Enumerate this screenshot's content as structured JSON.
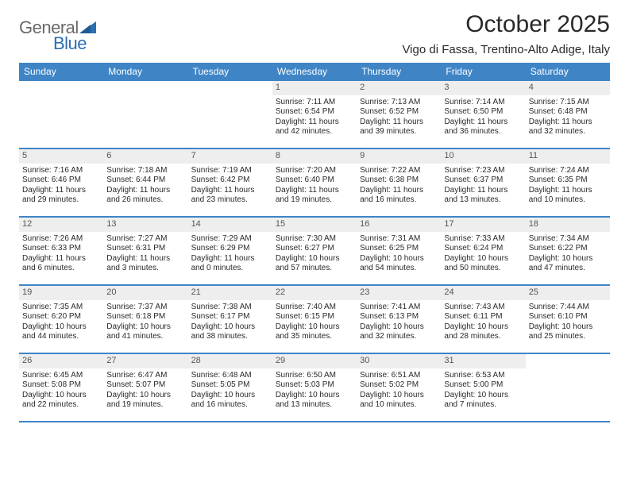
{
  "logo": {
    "part1": "General",
    "part2": "Blue"
  },
  "title": "October 2025",
  "location": "Vigo di Fassa, Trentino-Alto Adige, Italy",
  "colors": {
    "header_bg": "#3f85c6",
    "header_fg": "#ffffff",
    "daynum_bg": "#eeeeee",
    "daynum_fg": "#555555",
    "rule": "#3f85c6",
    "text": "#2a2a2a",
    "logo_gray": "#6a6a6a",
    "logo_blue": "#2b6fb0"
  },
  "dow": [
    "Sunday",
    "Monday",
    "Tuesday",
    "Wednesday",
    "Thursday",
    "Friday",
    "Saturday"
  ],
  "weeks": [
    [
      {
        "n": "",
        "sr": "",
        "ss": "",
        "dl": ""
      },
      {
        "n": "",
        "sr": "",
        "ss": "",
        "dl": ""
      },
      {
        "n": "",
        "sr": "",
        "ss": "",
        "dl": ""
      },
      {
        "n": "1",
        "sr": "Sunrise: 7:11 AM",
        "ss": "Sunset: 6:54 PM",
        "dl": "Daylight: 11 hours and 42 minutes."
      },
      {
        "n": "2",
        "sr": "Sunrise: 7:13 AM",
        "ss": "Sunset: 6:52 PM",
        "dl": "Daylight: 11 hours and 39 minutes."
      },
      {
        "n": "3",
        "sr": "Sunrise: 7:14 AM",
        "ss": "Sunset: 6:50 PM",
        "dl": "Daylight: 11 hours and 36 minutes."
      },
      {
        "n": "4",
        "sr": "Sunrise: 7:15 AM",
        "ss": "Sunset: 6:48 PM",
        "dl": "Daylight: 11 hours and 32 minutes."
      }
    ],
    [
      {
        "n": "5",
        "sr": "Sunrise: 7:16 AM",
        "ss": "Sunset: 6:46 PM",
        "dl": "Daylight: 11 hours and 29 minutes."
      },
      {
        "n": "6",
        "sr": "Sunrise: 7:18 AM",
        "ss": "Sunset: 6:44 PM",
        "dl": "Daylight: 11 hours and 26 minutes."
      },
      {
        "n": "7",
        "sr": "Sunrise: 7:19 AM",
        "ss": "Sunset: 6:42 PM",
        "dl": "Daylight: 11 hours and 23 minutes."
      },
      {
        "n": "8",
        "sr": "Sunrise: 7:20 AM",
        "ss": "Sunset: 6:40 PM",
        "dl": "Daylight: 11 hours and 19 minutes."
      },
      {
        "n": "9",
        "sr": "Sunrise: 7:22 AM",
        "ss": "Sunset: 6:38 PM",
        "dl": "Daylight: 11 hours and 16 minutes."
      },
      {
        "n": "10",
        "sr": "Sunrise: 7:23 AM",
        "ss": "Sunset: 6:37 PM",
        "dl": "Daylight: 11 hours and 13 minutes."
      },
      {
        "n": "11",
        "sr": "Sunrise: 7:24 AM",
        "ss": "Sunset: 6:35 PM",
        "dl": "Daylight: 11 hours and 10 minutes."
      }
    ],
    [
      {
        "n": "12",
        "sr": "Sunrise: 7:26 AM",
        "ss": "Sunset: 6:33 PM",
        "dl": "Daylight: 11 hours and 6 minutes."
      },
      {
        "n": "13",
        "sr": "Sunrise: 7:27 AM",
        "ss": "Sunset: 6:31 PM",
        "dl": "Daylight: 11 hours and 3 minutes."
      },
      {
        "n": "14",
        "sr": "Sunrise: 7:29 AM",
        "ss": "Sunset: 6:29 PM",
        "dl": "Daylight: 11 hours and 0 minutes."
      },
      {
        "n": "15",
        "sr": "Sunrise: 7:30 AM",
        "ss": "Sunset: 6:27 PM",
        "dl": "Daylight: 10 hours and 57 minutes."
      },
      {
        "n": "16",
        "sr": "Sunrise: 7:31 AM",
        "ss": "Sunset: 6:25 PM",
        "dl": "Daylight: 10 hours and 54 minutes."
      },
      {
        "n": "17",
        "sr": "Sunrise: 7:33 AM",
        "ss": "Sunset: 6:24 PM",
        "dl": "Daylight: 10 hours and 50 minutes."
      },
      {
        "n": "18",
        "sr": "Sunrise: 7:34 AM",
        "ss": "Sunset: 6:22 PM",
        "dl": "Daylight: 10 hours and 47 minutes."
      }
    ],
    [
      {
        "n": "19",
        "sr": "Sunrise: 7:35 AM",
        "ss": "Sunset: 6:20 PM",
        "dl": "Daylight: 10 hours and 44 minutes."
      },
      {
        "n": "20",
        "sr": "Sunrise: 7:37 AM",
        "ss": "Sunset: 6:18 PM",
        "dl": "Daylight: 10 hours and 41 minutes."
      },
      {
        "n": "21",
        "sr": "Sunrise: 7:38 AM",
        "ss": "Sunset: 6:17 PM",
        "dl": "Daylight: 10 hours and 38 minutes."
      },
      {
        "n": "22",
        "sr": "Sunrise: 7:40 AM",
        "ss": "Sunset: 6:15 PM",
        "dl": "Daylight: 10 hours and 35 minutes."
      },
      {
        "n": "23",
        "sr": "Sunrise: 7:41 AM",
        "ss": "Sunset: 6:13 PM",
        "dl": "Daylight: 10 hours and 32 minutes."
      },
      {
        "n": "24",
        "sr": "Sunrise: 7:43 AM",
        "ss": "Sunset: 6:11 PM",
        "dl": "Daylight: 10 hours and 28 minutes."
      },
      {
        "n": "25",
        "sr": "Sunrise: 7:44 AM",
        "ss": "Sunset: 6:10 PM",
        "dl": "Daylight: 10 hours and 25 minutes."
      }
    ],
    [
      {
        "n": "26",
        "sr": "Sunrise: 6:45 AM",
        "ss": "Sunset: 5:08 PM",
        "dl": "Daylight: 10 hours and 22 minutes."
      },
      {
        "n": "27",
        "sr": "Sunrise: 6:47 AM",
        "ss": "Sunset: 5:07 PM",
        "dl": "Daylight: 10 hours and 19 minutes."
      },
      {
        "n": "28",
        "sr": "Sunrise: 6:48 AM",
        "ss": "Sunset: 5:05 PM",
        "dl": "Daylight: 10 hours and 16 minutes."
      },
      {
        "n": "29",
        "sr": "Sunrise: 6:50 AM",
        "ss": "Sunset: 5:03 PM",
        "dl": "Daylight: 10 hours and 13 minutes."
      },
      {
        "n": "30",
        "sr": "Sunrise: 6:51 AM",
        "ss": "Sunset: 5:02 PM",
        "dl": "Daylight: 10 hours and 10 minutes."
      },
      {
        "n": "31",
        "sr": "Sunrise: 6:53 AM",
        "ss": "Sunset: 5:00 PM",
        "dl": "Daylight: 10 hours and 7 minutes."
      },
      {
        "n": "",
        "sr": "",
        "ss": "",
        "dl": ""
      }
    ]
  ]
}
